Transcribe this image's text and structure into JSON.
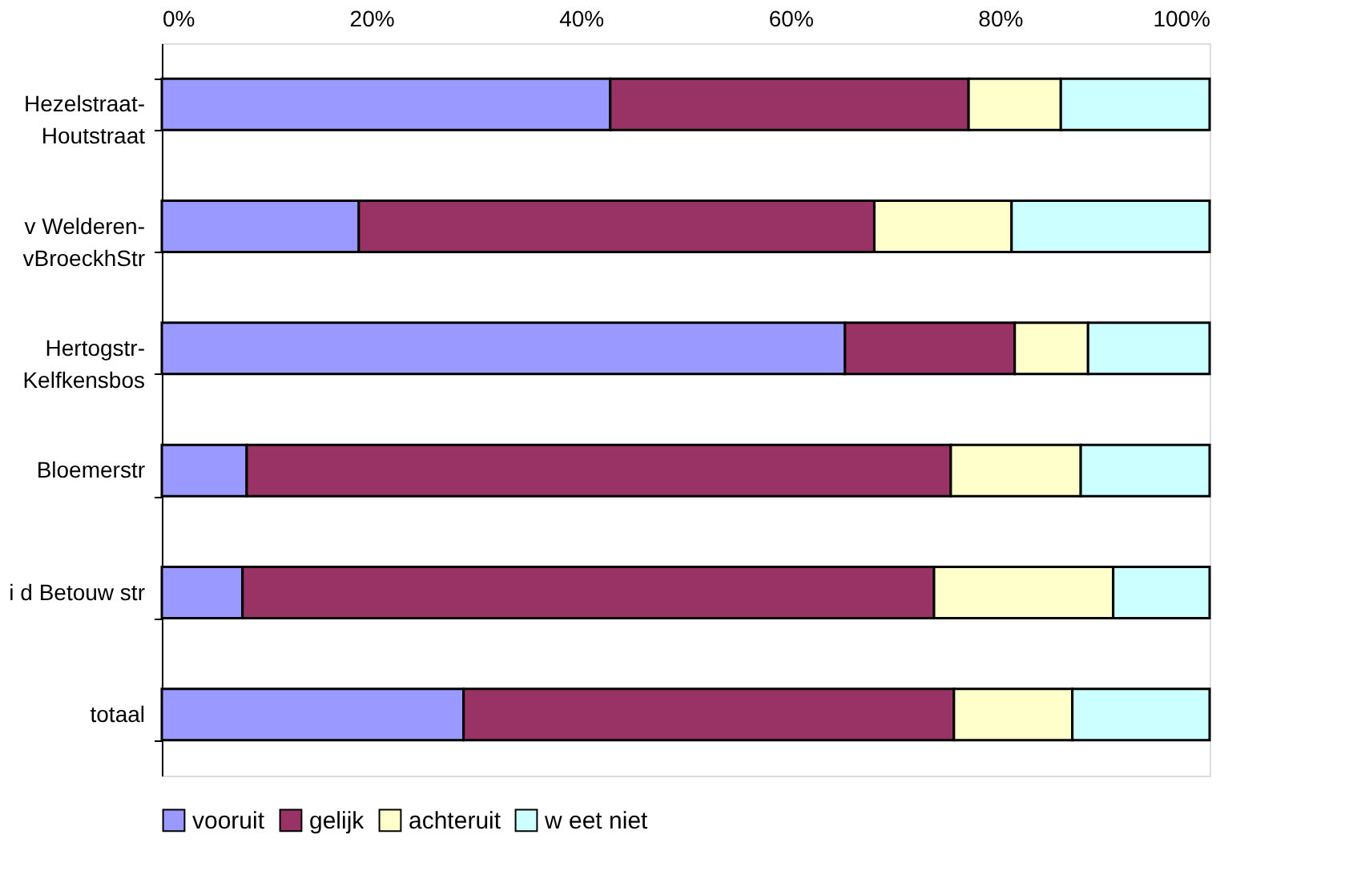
{
  "chart_data": {
    "type": "bar",
    "orientation": "horizontal",
    "stacked": true,
    "categories": [
      "Hezelstraat-\nHoutstraat",
      "v Welderen-\nvBroeckhStr",
      "Hertogstr-\nKelfkensbos",
      "Bloemerstr",
      "i d Betouw str",
      "totaal"
    ],
    "series": [
      {
        "name": "vooruit",
        "color": "#9999ff",
        "values": [
          42.8,
          18.8,
          65.2,
          8.1,
          7.7,
          28.8
        ]
      },
      {
        "name": "gelijk",
        "color": "#993366",
        "values": [
          34.2,
          49.2,
          16.2,
          67.2,
          66.0,
          46.8
        ]
      },
      {
        "name": "achteruit",
        "color": "#ffffcc",
        "values": [
          8.8,
          13.1,
          7.0,
          12.4,
          17.1,
          11.3
        ]
      },
      {
        "name": "w eet niet",
        "color": "#ccffff",
        "values": [
          14.2,
          18.9,
          11.6,
          12.3,
          9.2,
          13.1
        ]
      }
    ],
    "xlim": [
      0,
      100
    ],
    "xticks": [
      {
        "value": 0,
        "label": "0%"
      },
      {
        "value": 20,
        "label": "20%"
      },
      {
        "value": 40,
        "label": "40%"
      },
      {
        "value": 60,
        "label": "60%"
      },
      {
        "value": 80,
        "label": "80%"
      },
      {
        "value": 100,
        "label": "100%"
      }
    ],
    "grid": false,
    "legend": "bottom"
  }
}
